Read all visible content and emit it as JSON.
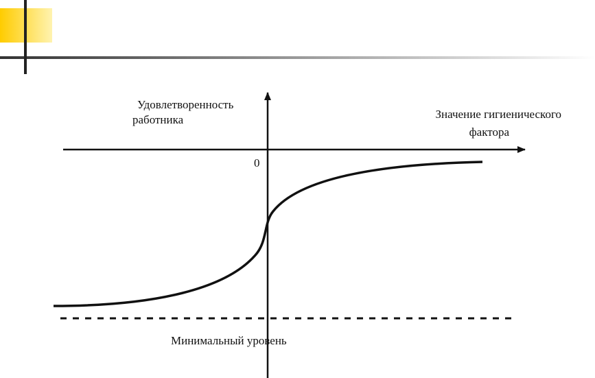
{
  "diagram": {
    "y_axis_label": {
      "lines": [
        "Удовлетворенность",
        "работника"
      ]
    },
    "x_axis_label": {
      "lines": [
        "Значение гигиенического",
        "фактора"
      ]
    },
    "origin_label": "0",
    "min_level_label": "Минимальный уровень"
  }
}
